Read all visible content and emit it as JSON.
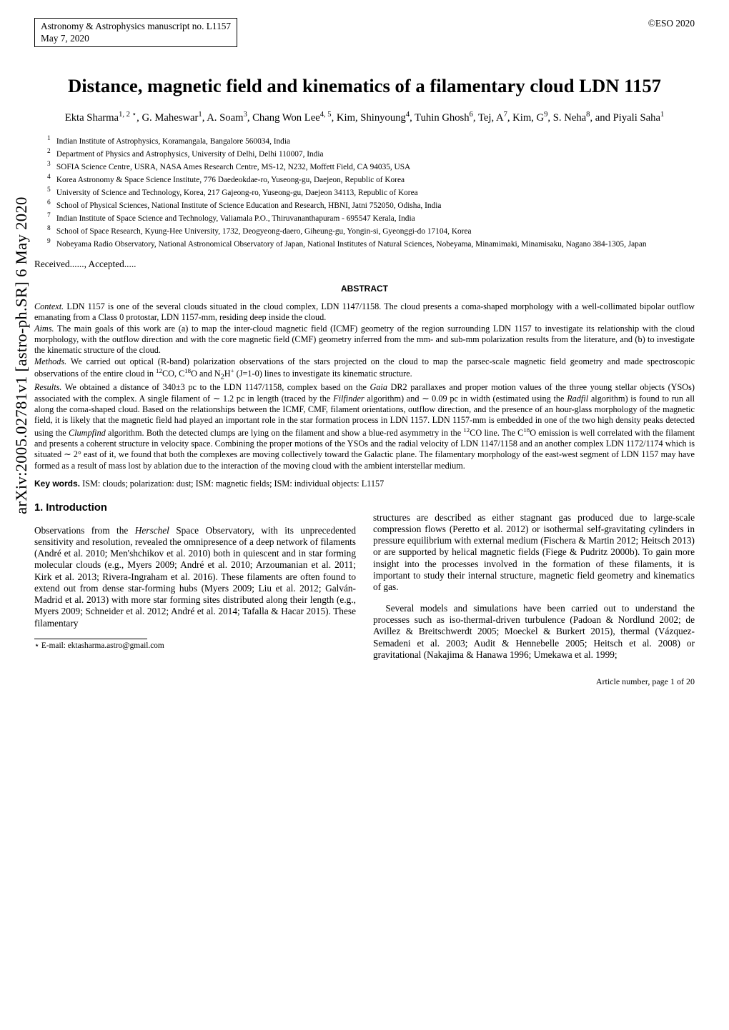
{
  "arxiv_stamp": "arXiv:2005.02781v1  [astro-ph.SR]  6 May 2020",
  "header": {
    "manuscript_line1": "Astronomy & Astrophysics manuscript no. L1157",
    "manuscript_line2": "May 7, 2020",
    "eso": "©ESO 2020"
  },
  "title": "Distance, magnetic field and kinematics of a filamentary cloud LDN 1157",
  "authors": "Ekta Sharma<sup>1, 2 ⋆</sup>, G. Maheswar<sup>1</sup>, A. Soam<sup>3</sup>, Chang Won Lee<sup>4, 5</sup>, Kim, Shinyoung<sup>4</sup>, Tuhin Ghosh<sup>6</sup>, Tej, A<sup>7</sup>, Kim, G<sup>9</sup>, S. Neha<sup>8</sup>, and Piyali Saha<sup>1</sup>",
  "affiliations": [
    {
      "num": "1",
      "text": "Indian Institute of Astrophysics, Koramangala, Bangalore 560034, India"
    },
    {
      "num": "2",
      "text": "Department of Physics and Astrophysics, University of Delhi, Delhi 110007, India"
    },
    {
      "num": "3",
      "text": "SOFIA Science Centre, USRA, NASA Ames Research Centre, MS-12, N232, Moffett Field, CA 94035, USA"
    },
    {
      "num": "4",
      "text": "Korea Astronomy & Space Science Institute, 776 Daedeokdae-ro, Yuseong-gu, Daejeon, Republic of Korea"
    },
    {
      "num": "5",
      "text": "University of Science and Technology, Korea, 217 Gajeong-ro, Yuseong-gu, Daejeon 34113, Republic of Korea"
    },
    {
      "num": "6",
      "text": "School of Physical Sciences, National Institute of Science Education and Research, HBNI, Jatni 752050, Odisha, India"
    },
    {
      "num": "7",
      "text": "Indian Institute of Space Science and Technology, Valiamala P.O., Thiruvananthapuram - 695547 Kerala, India"
    },
    {
      "num": "8",
      "text": "School of Space Research, Kyung-Hee University, 1732, Deogyeong-daero, Giheung-gu, Yongin-si, Gyeonggi-do 17104, Korea"
    },
    {
      "num": "9",
      "text": "Nobeyama Radio Observatory, National Astronomical Observatory of Japan, National Institutes of Natural Sciences, Nobeyama, Minamimaki, Minamisaku, Nagano 384-1305, Japan"
    }
  ],
  "received": "Received......, Accepted.....",
  "abstract_heading": "ABSTRACT",
  "abstract": {
    "context_label": "Context.",
    "context": "LDN 1157 is one of the several clouds situated in the cloud complex, LDN 1147/1158. The cloud presents a coma-shaped morphology with a well-collimated bipolar outflow emanating from a Class 0 protostar, LDN 1157-mm, residing deep inside the cloud.",
    "aims_label": "Aims.",
    "aims": "The main goals of this work are (a) to map the inter-cloud magnetic field (ICMF) geometry of the region surrounding LDN 1157 to investigate its relationship with the cloud morphology, with the outflow direction and with the core magnetic field (CMF) geometry inferred from the mm- and sub-mm polarization results from the literature, and (b) to investigate the kinematic structure of the cloud.",
    "methods_label": "Methods.",
    "methods": "We carried out optical (R-band) polarization observations of the stars projected on the cloud to map the parsec-scale magnetic field geometry and made spectroscopic observations of the entire cloud in <sup>12</sup>CO, C<sup>18</sup>O and N<sub>2</sub>H<sup>+</sup> (J=1-0) lines to investigate its kinematic structure.",
    "results_label": "Results.",
    "results": "We obtained a distance of 340±3 pc to the LDN 1147/1158, complex based on the <i>Gaia</i> DR2 parallaxes and proper motion values of the three young stellar objects (YSOs) associated with the complex. A single filament of ∼ 1.2 pc in length (traced by the <i>Filfinder</i> algorithm) and ∼ 0.09 pc in width (estimated using the <i>Radfil</i> algorithm) is found to run all along the coma-shaped cloud. Based on the relationships between the ICMF, CMF, filament orientations, outflow direction, and the presence of an hour-glass morphology of the magnetic field, it is likely that the magnetic field had played an important role in the star formation process in LDN 1157. LDN 1157-mm is embedded in one of the two high density peaks detected using the <i>Clumpfind</i> algorithm. Both the detected clumps are lying on the filament and show a blue-red asymmetry in the <sup>12</sup>CO line. The C<sup>18</sup>O emission is well correlated with the filament and presents a coherent structure in velocity space. Combining the proper motions of the YSOs and the radial velocity of LDN 1147/1158 and an another complex LDN 1172/1174 which is situated ∼ 2° east of it, we found that both the complexes are moving collectively toward the Galactic plane. The filamentary morphology of the east-west segment of LDN 1157 may have formed as a result of mass lost by ablation due to the interaction of the moving cloud with the ambient interstellar medium."
  },
  "keywords_label": "Key words.",
  "keywords": "ISM: clouds; polarization: dust; ISM: magnetic fields; ISM: individual objects: L1157",
  "section_heading": "1. Introduction",
  "col1_p1": "Observations from the <i>Herschel</i> Space Observatory, with its unprecedented sensitivity and resolution, revealed the omnipresence of a deep network of filaments (André et al. 2010; Men'shchikov et al. 2010) both in quiescent and in star forming molecular clouds (e.g., Myers 2009; André et al. 2010; Arzoumanian et al. 2011; Kirk et al. 2013; Rivera-Ingraham et al. 2016). These filaments are often found to extend out from dense star-forming hubs (Myers 2009; Liu et al. 2012; Galván-Madrid et al. 2013) with more star forming sites distributed along their length (e.g., Myers 2009; Schneider et al. 2012; André et al. 2014; Tafalla & Hacar 2015). These filamentary",
  "footnote": "⋆ E-mail: ektasharma.astro@gmail.com",
  "col2_p1": "structures are described as either stagnant gas produced due to large-scale compression flows (Peretto et al. 2012) or isothermal self-gravitating cylinders in pressure equilibrium with external medium (Fischera & Martin 2012; Heitsch 2013) or are supported by helical magnetic fields (Fiege & Pudritz 2000b). To gain more insight into the processes involved in the formation of these filaments, it is important to study their internal structure, magnetic field geometry and kinematics of gas.",
  "col2_p2": "Several models and simulations have been carried out to understand the processes such as iso-thermal-driven turbulence (Padoan & Nordlund 2002; de Avillez & Breitschwerdt 2005; Moeckel & Burkert 2015), thermal (Vázquez-Semadeni et al. 2003; Audit & Hennebelle 2005; Heitsch et al. 2008) or gravitational (Nakajima & Hanawa 1996; Umekawa et al. 1999;",
  "article_number": "Article number, page 1 of 20"
}
